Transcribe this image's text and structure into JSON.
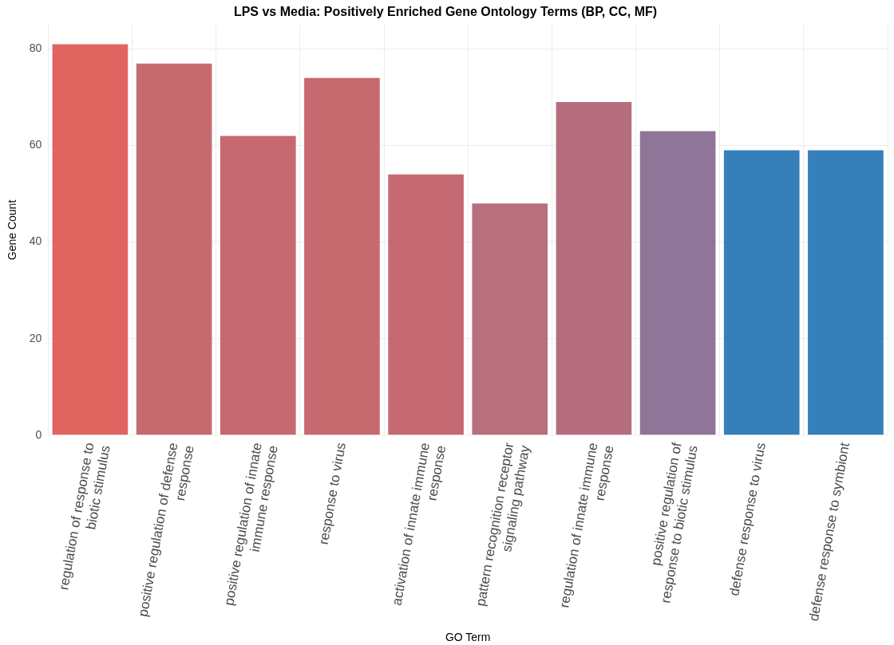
{
  "chart_data": {
    "type": "bar",
    "title": "LPS vs Media: Positively Enriched Gene Ontology Terms (BP, CC, MF)",
    "xlabel": "GO Term",
    "ylabel": "Gene Count",
    "categories": [
      "regulation of response to biotic stimulus",
      "positive regulation of defense response",
      "positive regulation of innate immune response",
      "response to virus",
      "activation of innate immune response",
      "pattern recognition receptor signaling pathway",
      "regulation of innate immune response",
      "positive regulation of response to biotic stimulus",
      "defense response to virus",
      "defense response to symbiont"
    ],
    "values": [
      81,
      77,
      62,
      74,
      54,
      48,
      69,
      63,
      59,
      59
    ],
    "colors": [
      "#e06560",
      "#c66a70",
      "#c6686f",
      "#c66a70",
      "#c56a72",
      "#b8707c",
      "#b56d7e",
      "#8f7598",
      "#357fbb",
      "#357fbb"
    ],
    "ylim": [
      0,
      85
    ],
    "yticks": [
      0,
      20,
      40,
      60,
      80
    ],
    "grid": true,
    "legend": false
  }
}
